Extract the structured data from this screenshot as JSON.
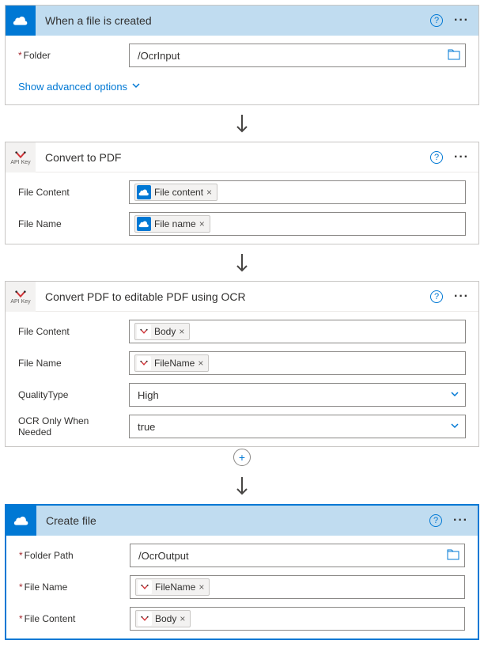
{
  "cards": [
    {
      "title": "When a file is created",
      "headStyle": "blue",
      "connector": "onedrive",
      "selected": false,
      "rows": [
        {
          "label": "Folder",
          "required": true,
          "type": "text-folder",
          "value": "/OcrInput"
        }
      ],
      "advanced": "Show advanced options"
    },
    {
      "title": "Convert to PDF",
      "headStyle": "white",
      "connector": "apikey",
      "selected": false,
      "rows": [
        {
          "label": "File Content",
          "required": false,
          "type": "token",
          "token": {
            "icon": "onedrive",
            "text": "File content"
          }
        },
        {
          "label": "File Name",
          "required": false,
          "type": "token",
          "token": {
            "icon": "onedrive",
            "text": "File name"
          }
        }
      ]
    },
    {
      "title": "Convert PDF to editable PDF using OCR",
      "headStyle": "white",
      "connector": "apikey",
      "selected": false,
      "rows": [
        {
          "label": "File Content",
          "required": false,
          "type": "token",
          "token": {
            "icon": "apikey",
            "text": "Body"
          }
        },
        {
          "label": "File Name",
          "required": false,
          "type": "token",
          "token": {
            "icon": "apikey",
            "text": "FileName"
          }
        },
        {
          "label": "QualityType",
          "required": false,
          "type": "dropdown",
          "value": "High"
        },
        {
          "label": "OCR Only When Needed",
          "required": false,
          "type": "dropdown",
          "value": "true"
        }
      ],
      "plusAfter": true
    },
    {
      "title": "Create file",
      "headStyle": "blue",
      "connector": "onedrive",
      "selected": true,
      "rows": [
        {
          "label": "Folder Path",
          "required": true,
          "type": "text-folder",
          "value": "/OcrOutput"
        },
        {
          "label": "File Name",
          "required": true,
          "type": "token",
          "token": {
            "icon": "apikey",
            "text": "FileName"
          }
        },
        {
          "label": "File Content",
          "required": true,
          "type": "token",
          "token": {
            "icon": "apikey",
            "text": "Body"
          }
        }
      ]
    }
  ]
}
